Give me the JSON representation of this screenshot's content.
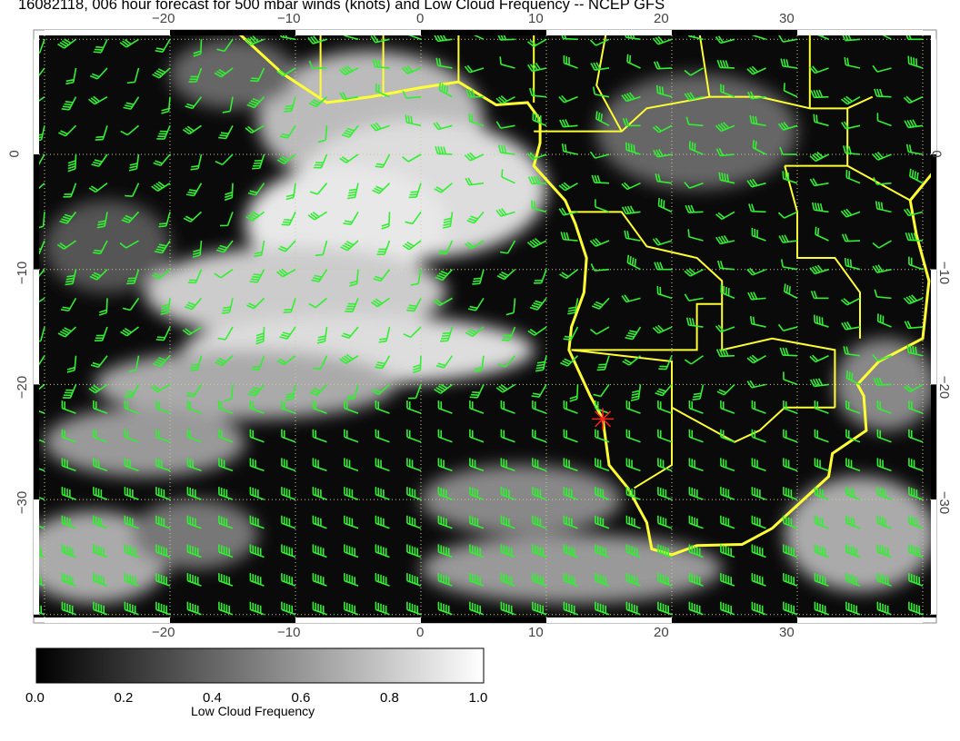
{
  "title": "16082118, 006 hour forecast for 500 mbar winds (knots) and Low Cloud Frequency -- NCEP GFS",
  "map": {
    "lon_ticks": [
      "−20",
      "−10",
      "0",
      "10",
      "20",
      "30"
    ],
    "lat_ticks": [
      "0",
      "−10",
      "−20",
      "−30"
    ],
    "lon_range": [
      -31,
      41
    ],
    "lat_range": [
      11,
      -40.5
    ],
    "coastline_color": "#ffff33",
    "wind_barb_color": "#33ee33",
    "marker": {
      "symbol": "red-star",
      "lon": 14.5,
      "lat": -23,
      "color": "#ff2020"
    }
  },
  "colorbar": {
    "label": "Low Cloud Frequency",
    "ticks": [
      "0.0",
      "0.2",
      "0.4",
      "0.6",
      "0.8",
      "1.0"
    ],
    "range": [
      0,
      1
    ],
    "colors": [
      "#000000",
      "#ffffff"
    ]
  }
}
